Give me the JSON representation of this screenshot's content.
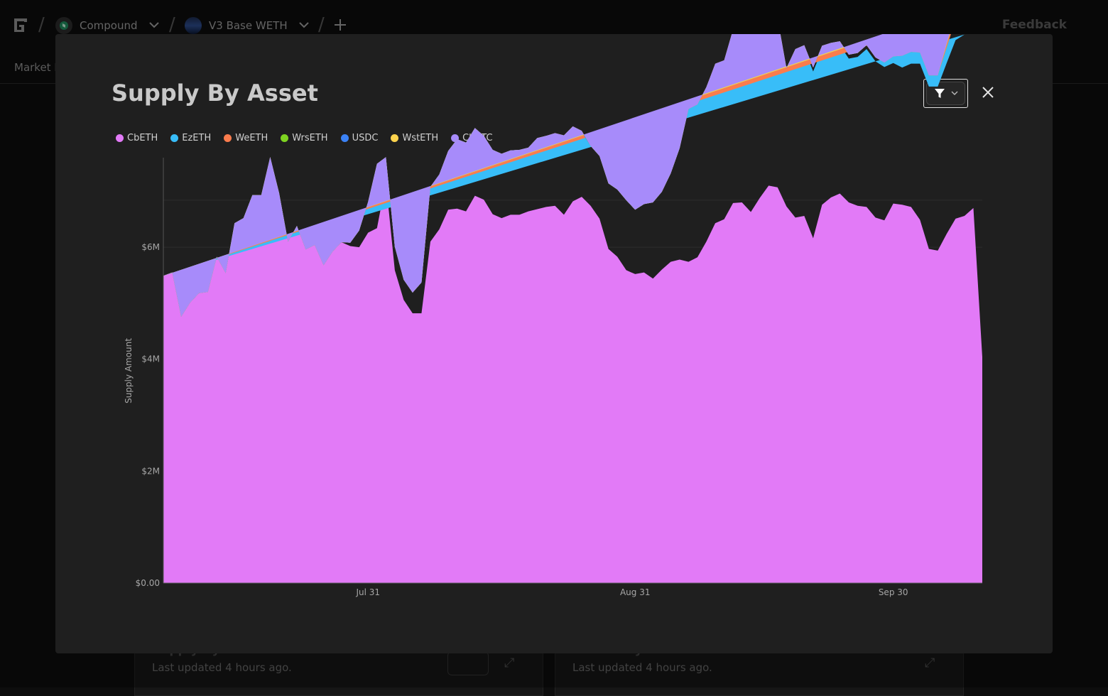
{
  "header": {
    "breadcrumbs": [
      {
        "label": "Compound",
        "icon": "compound-logo-icon",
        "color": "#1f8a5c"
      },
      {
        "label": "V3 Base WETH",
        "icon": "base-weth-icon",
        "color": "#2b4a8a"
      }
    ],
    "feedback_label": "Feedback"
  },
  "subnav": {
    "label": "Market H"
  },
  "background_cards": [
    {
      "title": "Supply By Asset",
      "subtitle": "Last updated 4 hours ago."
    },
    {
      "title": "Borrow By Asset",
      "subtitle": "Last updated 4 hours ago."
    }
  ],
  "modal": {
    "title": "Supply By Asset",
    "filter_icon": "filter-icon",
    "close_icon": "close-icon"
  },
  "chart_data": {
    "type": "area",
    "stacked": true,
    "ylabel": "Supply Amount",
    "ylim": [
      0,
      7600000
    ],
    "yticks": [
      {
        "value": 0,
        "label": "$0.00"
      },
      {
        "value": 2000000,
        "label": "$2M"
      },
      {
        "value": 4000000,
        "label": "$4M"
      },
      {
        "value": 6000000,
        "label": "$6M"
      }
    ],
    "xticks": [
      {
        "index": 23,
        "label": "Jul 31"
      },
      {
        "index": 53,
        "label": "Aug 31"
      },
      {
        "index": 82,
        "label": "Sep 30"
      }
    ],
    "legend_position": "top-left",
    "series": [
      {
        "name": "CbETH",
        "color": "#e27af7",
        "values": [
          5.49,
          5.55,
          4.76,
          5.01,
          5.18,
          5.2,
          5.83,
          5.54,
          6.43,
          6.52,
          6.93,
          6.93,
          7.61,
          6.97,
          6.1,
          6.38,
          5.96,
          6.04,
          5.68,
          5.92,
          6.09,
          6.02,
          6.0,
          6.26,
          6.34,
          7.17,
          5.59,
          5.06,
          4.82,
          4.82,
          6.1,
          6.32,
          6.67,
          6.69,
          6.64,
          6.92,
          6.85,
          6.59,
          6.52,
          6.58,
          6.58,
          6.64,
          6.68,
          6.72,
          6.74,
          6.58,
          6.82,
          6.9,
          6.74,
          6.51,
          5.97,
          5.83,
          5.59,
          5.52,
          5.55,
          5.44,
          5.6,
          5.74,
          5.78,
          5.74,
          5.82,
          6.1,
          6.43,
          6.5,
          6.79,
          6.8,
          6.63,
          6.88,
          7.1,
          7.07,
          6.73,
          6.53,
          6.56,
          6.16,
          6.76,
          6.89,
          6.96,
          6.8,
          6.74,
          6.72,
          6.53,
          6.48,
          6.78,
          6.76,
          6.72,
          6.49,
          5.97,
          5.94,
          6.24,
          6.51,
          6.56,
          6.7,
          4.04
        ]
      },
      {
        "name": "EzETH",
        "color": "#38bdf8",
        "values": [
          0,
          0,
          0,
          0,
          0,
          0,
          0,
          0,
          0,
          0,
          0,
          0,
          0,
          0,
          0,
          0,
          0,
          0,
          0,
          0,
          0,
          0.06,
          0.3,
          0.55,
          1.15,
          0.44,
          0.42,
          0.36,
          0.37,
          0.55,
          0.98,
          0.98,
          1.05,
          1.24,
          1.23,
          1.21,
          1.14,
          1.15,
          1.15,
          1.15,
          1.16,
          1.14,
          1.27,
          1.27,
          1.22,
          1.32,
          1.24,
          1.16,
          1.07,
          1.12,
          1.17,
          1.2,
          1.25,
          1.15,
          1.22,
          1.36,
          1.39,
          1.58,
          1.99,
          2.73,
          2.73,
          2.76,
          2.83,
          2.81,
          3.06,
          3.26,
          3.25,
          3.09,
          3.04,
          3.02,
          2.42,
          2.96,
          2.98,
          2.98,
          2.77,
          2.69,
          2.65,
          2.57,
          2.66,
          2.82,
          2.79,
          2.74,
          2.51,
          2.45,
          2.56,
          2.79,
          2.9,
          2.93,
          3.05,
          3.19,
          3.24
        ]
      },
      {
        "name": "WeETH",
        "color": "#fb7c4d",
        "values": [
          0,
          0,
          0,
          0,
          0,
          0,
          0,
          0,
          0,
          0,
          0,
          0,
          0,
          0,
          0,
          0,
          0,
          0,
          0,
          0,
          0,
          0,
          0,
          0,
          0,
          0,
          0,
          0,
          0,
          0,
          0,
          0,
          0,
          0,
          0,
          0,
          0,
          0,
          0,
          0,
          0,
          0,
          0,
          0,
          0,
          0,
          0,
          0,
          0,
          0,
          0,
          0,
          0,
          0,
          0,
          0,
          0,
          0,
          0,
          0,
          0,
          0,
          0,
          0,
          0,
          0,
          0,
          0,
          0,
          0,
          0.05,
          0.05,
          0.07,
          0.07,
          0.07,
          0.07,
          0.07,
          0.07,
          0.07,
          0.07,
          0.07,
          0.08,
          0.12,
          0.21,
          0.21,
          0.2,
          0.2,
          0.2,
          0.28,
          0.36,
          0.37,
          0.38,
          0.38
        ]
      },
      {
        "name": "WrsETH",
        "color": "#7ed321",
        "values": [
          0,
          0,
          0,
          0,
          0,
          0,
          0,
          0,
          0,
          0,
          0,
          0,
          0,
          0,
          0,
          0,
          0,
          0,
          0,
          0,
          0,
          0,
          0,
          0,
          0,
          0,
          0,
          0,
          0,
          0,
          0,
          0,
          0,
          0,
          0,
          0,
          0,
          0,
          0,
          0,
          0,
          0,
          0,
          0,
          0,
          0,
          0,
          0,
          0,
          0,
          0,
          0,
          0,
          0,
          0,
          0,
          0,
          0,
          0,
          0,
          0,
          0,
          0,
          0,
          0,
          0,
          0,
          0,
          0,
          0,
          0,
          0,
          0,
          0,
          0,
          0,
          0,
          0,
          0,
          0,
          0,
          0,
          0,
          0,
          0,
          0,
          0,
          0,
          0.05,
          0.1,
          0.11,
          0.12,
          0.12
        ]
      },
      {
        "name": "USDC",
        "color": "#3b82f6",
        "values": [
          0,
          0,
          0,
          0,
          0,
          0,
          0,
          0,
          0,
          0,
          0,
          0,
          0,
          0,
          0,
          0,
          0,
          0,
          0,
          0,
          0,
          0,
          0,
          0,
          0,
          0,
          0,
          0,
          0,
          0,
          0,
          0,
          0,
          0,
          0,
          0,
          0,
          0,
          0,
          0,
          0,
          0,
          0,
          0,
          0,
          0,
          0,
          0,
          0,
          0,
          0,
          0,
          0,
          0,
          0,
          0,
          0,
          0,
          0,
          0,
          0,
          0,
          0,
          0,
          0,
          0,
          0,
          0,
          0,
          0,
          0,
          0,
          0,
          0,
          0,
          0,
          0,
          0,
          0,
          0,
          0,
          0,
          0,
          0,
          0,
          0,
          0,
          0,
          0,
          0,
          0,
          0,
          0
        ]
      },
      {
        "name": "WstETH",
        "color": "#fcd34d",
        "values": [
          0,
          0,
          0,
          0,
          0,
          0,
          0,
          0,
          0,
          0,
          0,
          0,
          0,
          0,
          0,
          0,
          0,
          0,
          0,
          0,
          0,
          0,
          0,
          0,
          0,
          0,
          0,
          0,
          0,
          0,
          0,
          0,
          0,
          0,
          0,
          0,
          0,
          0,
          0,
          0,
          0,
          0,
          0,
          0,
          0.08,
          0.1,
          0.1,
          0.02,
          0,
          0,
          0,
          0,
          0,
          0,
          0,
          0,
          0,
          0,
          0,
          0,
          0,
          0,
          0.02,
          0.03,
          0.04,
          0.02,
          0,
          0,
          0,
          0,
          0,
          0,
          0,
          0,
          0,
          0,
          0,
          0,
          0,
          0,
          0,
          0,
          0,
          0,
          0,
          0,
          0,
          0,
          0,
          0,
          0,
          0,
          0
        ]
      },
      {
        "name": "CbBTC",
        "color": "#a78bfa",
        "values": [
          0,
          0,
          0,
          0,
          0,
          0,
          0,
          0,
          0,
          0,
          0,
          0,
          0,
          0,
          0,
          0,
          0,
          0,
          0,
          0,
          0,
          0,
          0,
          0,
          0,
          0,
          0,
          0,
          0,
          0,
          0,
          0,
          0,
          0,
          0,
          0,
          0,
          0,
          0,
          0,
          0,
          0,
          0,
          0,
          0,
          0,
          0,
          0,
          0,
          0,
          0,
          0,
          0,
          0,
          0,
          0,
          0,
          0,
          0,
          0,
          0,
          0,
          0,
          0,
          0,
          0,
          0,
          0,
          0,
          0,
          0,
          0,
          0,
          0,
          0,
          0,
          0,
          0,
          0,
          0,
          0,
          0,
          0,
          0,
          0,
          0,
          0,
          0,
          0.02,
          0.02,
          0.02,
          0.02,
          0.02
        ]
      }
    ]
  }
}
